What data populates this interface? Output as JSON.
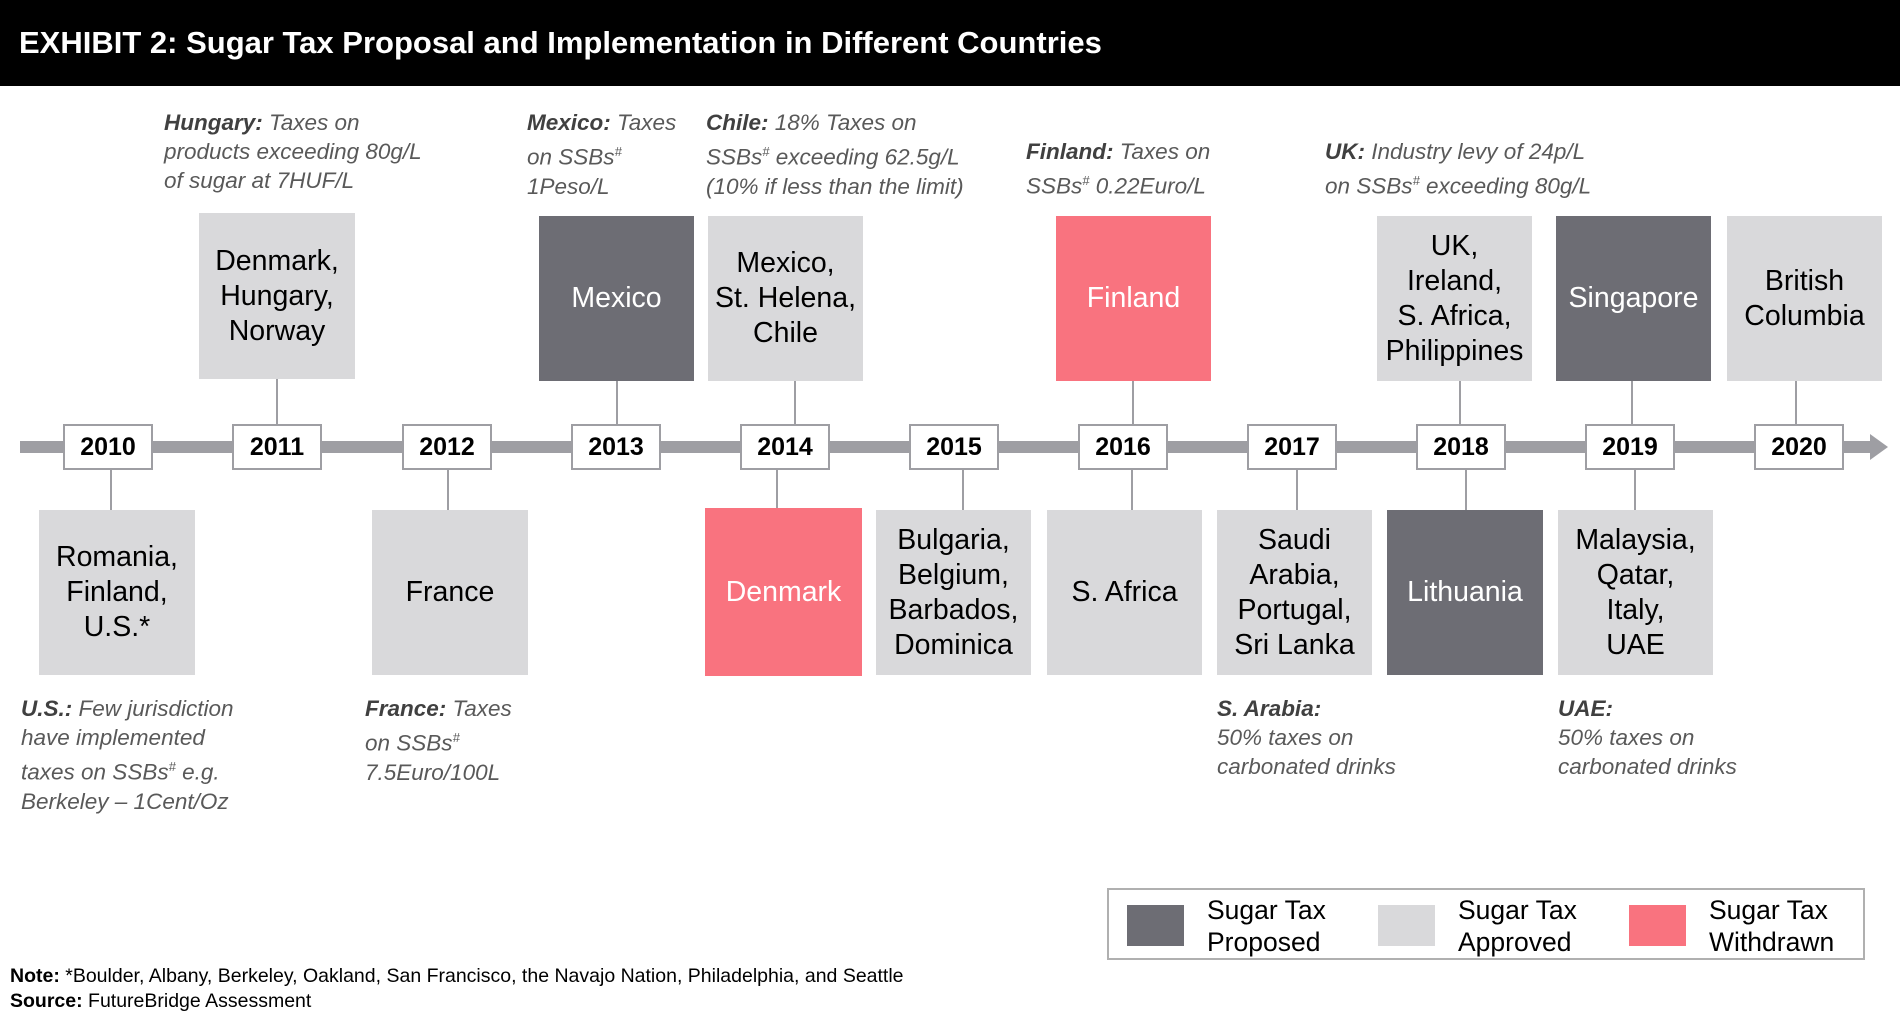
{
  "title": "EXHIBIT 2: Sugar Tax Proposal and Implementation in Different Countries",
  "years": [
    "2010",
    "2011",
    "2012",
    "2013",
    "2014",
    "2015",
    "2016",
    "2017",
    "2018",
    "2019",
    "2020"
  ],
  "top_boxes": {
    "y2011": [
      "Denmark,",
      "Hungary,",
      "Norway"
    ],
    "y2013": [
      "Mexico"
    ],
    "y2014": [
      "Mexico,",
      "St. Helena,",
      "Chile"
    ],
    "y2016": [
      "Finland"
    ],
    "y2018": [
      "UK,",
      "Ireland,",
      "S. Africa,",
      "Philippines"
    ],
    "y2019": [
      "Singapore"
    ],
    "y2020": [
      "British",
      "Columbia"
    ]
  },
  "bottom_boxes": {
    "y2010": [
      "Romania,",
      "Finland,",
      "U.S.*"
    ],
    "y2012": [
      "France"
    ],
    "y2014": [
      "Denmark"
    ],
    "y2015": [
      "Bulgaria,",
      "Belgium,",
      "Barbados,",
      "Dominica"
    ],
    "y2016": [
      "S. Africa"
    ],
    "y2017": [
      "Saudi",
      "Arabia,",
      "Portugal,",
      "Sri Lanka"
    ],
    "y2018": [
      "Lithuania"
    ],
    "y2019": [
      "Malaysia,",
      "Qatar,",
      "Italy,",
      "UAE"
    ]
  },
  "annotations": {
    "hungary": {
      "label": "Hungary:",
      "lines": [
        " Taxes on",
        "products exceeding 80g/L",
        "of sugar at 7HUF/L"
      ]
    },
    "mexico": {
      "label": "Mexico:",
      "lines": [
        " Taxes",
        "on SSBs",
        "#",
        "",
        "1Peso/L"
      ]
    },
    "chile": {
      "label": "Chile:",
      "lines": [
        " 18% Taxes on",
        "SSBs",
        "#",
        " exceeding 62.5g/L",
        "(10% if less than the limit)"
      ]
    },
    "finland": {
      "label": "Finland:",
      "lines": [
        " Taxes on",
        "SSBs",
        "#",
        " 0.22Euro/L"
      ]
    },
    "uk": {
      "label": "UK:",
      "lines": [
        " Industry levy of 24p/L",
        "on SSBs",
        "#",
        " exceeding 80g/L"
      ]
    },
    "us": {
      "label": "U.S.:",
      "lines": [
        " Few jurisdiction",
        "have implemented",
        "taxes on SSBs",
        "#",
        " e.g.",
        "Berkeley – 1Cent/Oz"
      ]
    },
    "france": {
      "label": "France:",
      "lines": [
        " Taxes",
        "on SSBs",
        "#",
        "",
        "7.5Euro/100L"
      ]
    },
    "sarabia": {
      "label": "S. Arabia:",
      "lines": [
        "50% taxes on",
        "carbonated drinks"
      ]
    },
    "uae": {
      "label": "UAE:",
      "lines": [
        "50% taxes on",
        "carbonated drinks"
      ]
    }
  },
  "legend": {
    "proposed": [
      "Sugar Tax",
      "Proposed"
    ],
    "approved": [
      "Sugar Tax",
      "Approved"
    ],
    "withdrawn": [
      "Sugar Tax",
      "Withdrawn"
    ]
  },
  "colors": {
    "proposed": "#6d6d74",
    "approved": "#d9d9db",
    "withdrawn": "#f9737f",
    "timeline": "#9e9ea3"
  },
  "note": {
    "label": "Note:",
    "text": " *Boulder, Albany, Berkeley, Oakland, San Francisco, the Navajo Nation, Philadelphia, and Seattle"
  },
  "source": {
    "label": "Source:",
    "text": " FutureBridge Assessment"
  }
}
